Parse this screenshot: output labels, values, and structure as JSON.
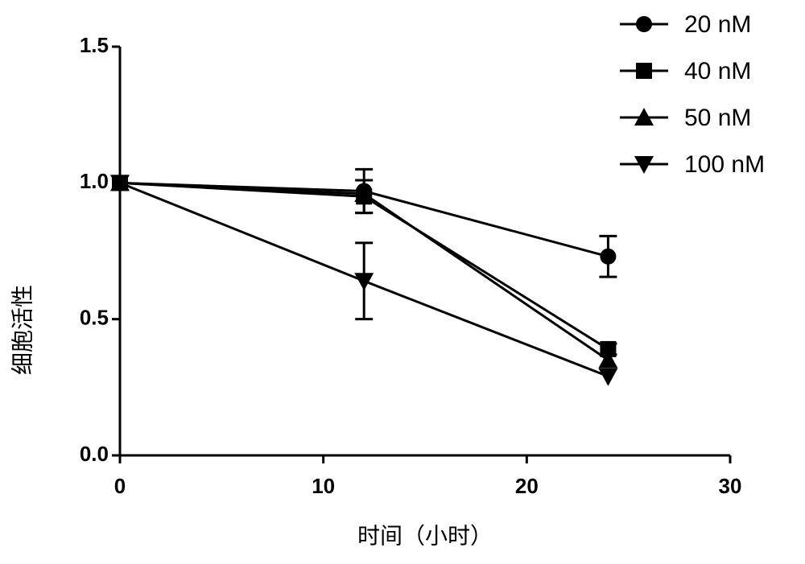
{
  "chart_data": {
    "type": "line",
    "xlabel": "时间（小时）",
    "ylabel": "细胞活性",
    "x": [
      0,
      12,
      24
    ],
    "series": [
      {
        "name": "20 nM",
        "color": "#000000",
        "marker": "circle",
        "values": [
          1,
          0.97,
          0.73
        ],
        "errors": [
          null,
          0.08,
          0.075
        ]
      },
      {
        "name": "40 nM",
        "color": "#000000",
        "marker": "square",
        "values": [
          1,
          0.95,
          0.39
        ],
        "errors": [
          null,
          0.06,
          0.02
        ]
      },
      {
        "name": "50 nM",
        "color": "#000000",
        "marker": "triangle",
        "values": [
          1,
          0.96,
          0.35
        ],
        "errors": [
          null,
          null,
          null
        ]
      },
      {
        "name": "100 nM",
        "color": "#000000",
        "marker": "triangle-down",
        "values": [
          1,
          0.64,
          0.29
        ],
        "errors": [
          null,
          0.14,
          null
        ]
      }
    ],
    "xlim": [
      0,
      30
    ],
    "xticks": [
      0,
      10,
      20,
      30
    ],
    "ylim": [
      0,
      1.5
    ],
    "yticks": [
      {
        "value": 0,
        "label": "0.0"
      },
      {
        "value": 0.5,
        "label": "0.5"
      },
      {
        "value": 1,
        "label": "1.0"
      },
      {
        "value": 1.5,
        "label": "1.5"
      }
    ],
    "legend": "top-right"
  }
}
